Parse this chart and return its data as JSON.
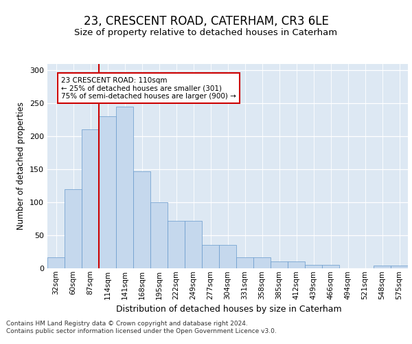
{
  "title": "23, CRESCENT ROAD, CATERHAM, CR3 6LE",
  "subtitle": "Size of property relative to detached houses in Caterham",
  "xlabel": "Distribution of detached houses by size in Caterham",
  "ylabel": "Number of detached properties",
  "bin_labels": [
    "32sqm",
    "60sqm",
    "87sqm",
    "114sqm",
    "141sqm",
    "168sqm",
    "195sqm",
    "222sqm",
    "249sqm",
    "277sqm",
    "304sqm",
    "331sqm",
    "358sqm",
    "385sqm",
    "412sqm",
    "439sqm",
    "466sqm",
    "494sqm",
    "521sqm",
    "548sqm",
    "575sqm"
  ],
  "bar_heights": [
    17,
    120,
    210,
    230,
    245,
    147,
    100,
    72,
    72,
    35,
    35,
    17,
    17,
    10,
    10,
    5,
    5,
    0,
    0,
    4,
    4
  ],
  "bar_color": "#c5d8ed",
  "bar_edgecolor": "#6699cc",
  "vline_color": "#cc0000",
  "vline_x_idx": 2.5,
  "annotation_text": "23 CRESCENT ROAD: 110sqm\n← 25% of detached houses are smaller (301)\n75% of semi-detached houses are larger (900) →",
  "annotation_box_edgecolor": "#cc0000",
  "annotation_box_facecolor": "#ffffff",
  "ylim": [
    0,
    310
  ],
  "yticks": [
    0,
    50,
    100,
    150,
    200,
    250,
    300
  ],
  "plot_bg_color": "#dde8f3",
  "footer_line1": "Contains HM Land Registry data © Crown copyright and database right 2024.",
  "footer_line2": "Contains public sector information licensed under the Open Government Licence v3.0."
}
